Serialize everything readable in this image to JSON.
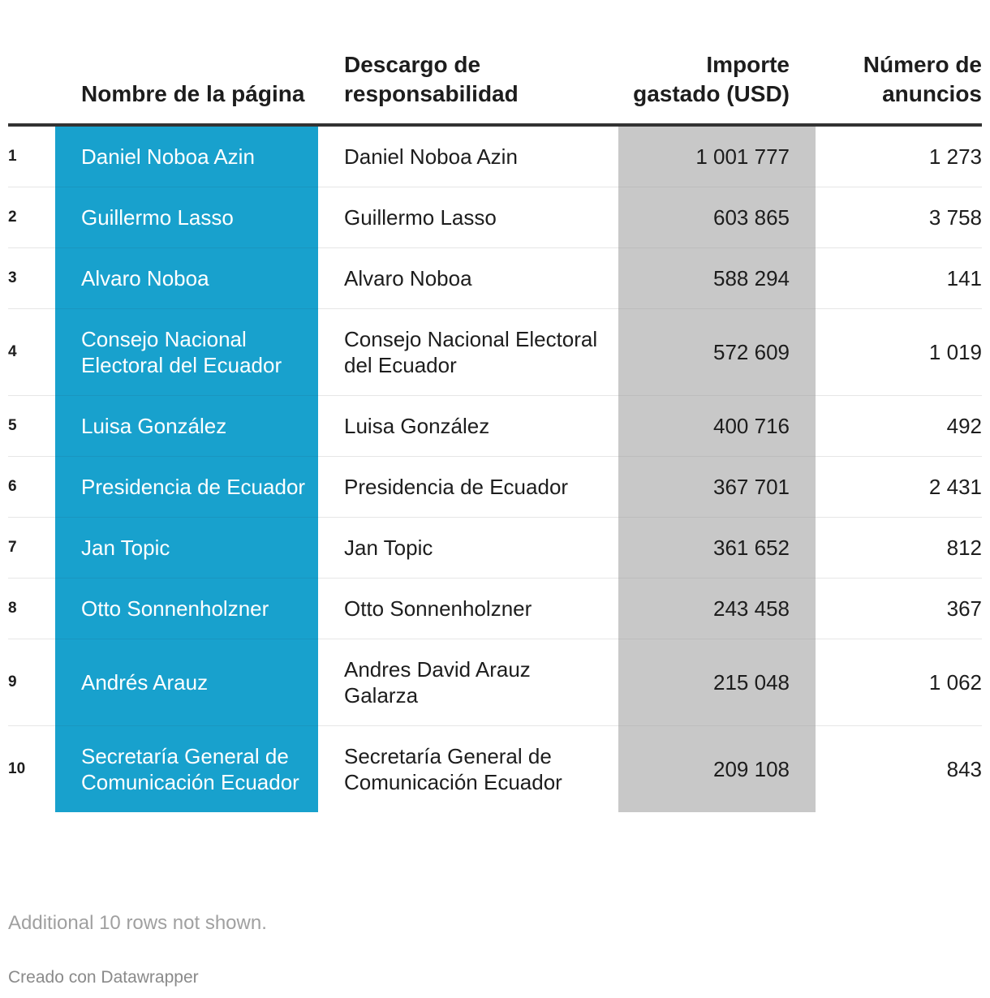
{
  "chart_data": {
    "type": "table",
    "columns": [
      "",
      "Nombre de la página",
      "Descargo de responsabilidad",
      "Importe gastado (USD)",
      "Número de anuncios"
    ],
    "rows": [
      {
        "rank": "1",
        "page": "Daniel Noboa Azin",
        "disclaimer": "Daniel Noboa Azin",
        "amount": "1 001 777",
        "ads": "1 273"
      },
      {
        "rank": "2",
        "page": "Guillermo Lasso",
        "disclaimer": "Guillermo Lasso",
        "amount": "603 865",
        "ads": "3 758"
      },
      {
        "rank": "3",
        "page": "Alvaro Noboa",
        "disclaimer": "Alvaro Noboa",
        "amount": "588 294",
        "ads": "141"
      },
      {
        "rank": "4",
        "page": "Consejo Nacional Electoral del Ecuador",
        "disclaimer": "Consejo Nacional Electoral del Ecuador",
        "amount": "572 609",
        "ads": "1 019"
      },
      {
        "rank": "5",
        "page": "Luisa González",
        "disclaimer": "Luisa González",
        "amount": "400 716",
        "ads": "492"
      },
      {
        "rank": "6",
        "page": "Presidencia de Ecuador",
        "disclaimer": "Presidencia de Ecuador",
        "amount": "367 701",
        "ads": "2 431"
      },
      {
        "rank": "7",
        "page": "Jan Topic",
        "disclaimer": "Jan Topic",
        "amount": "361 652",
        "ads": "812"
      },
      {
        "rank": "8",
        "page": "Otto Sonnenholzner",
        "disclaimer": "Otto Sonnenholzner",
        "amount": "243 458",
        "ads": "367"
      },
      {
        "rank": "9",
        "page": "Andrés Arauz",
        "disclaimer": "Andres David Arauz Galarza",
        "amount": "215 048",
        "ads": "1 062"
      },
      {
        "rank": "10",
        "page": "Secretaría General de Comunicación Ecuador",
        "disclaimer": "Secretaría General de Comunicación Ecuador",
        "amount": "209 108",
        "ads": "843"
      }
    ],
    "colors": {
      "page_column": "#18a1cd",
      "amount_column": "#c8c8c8"
    }
  },
  "footer": {
    "note": "Additional 10 rows not shown.",
    "credit": "Creado con Datawrapper"
  }
}
